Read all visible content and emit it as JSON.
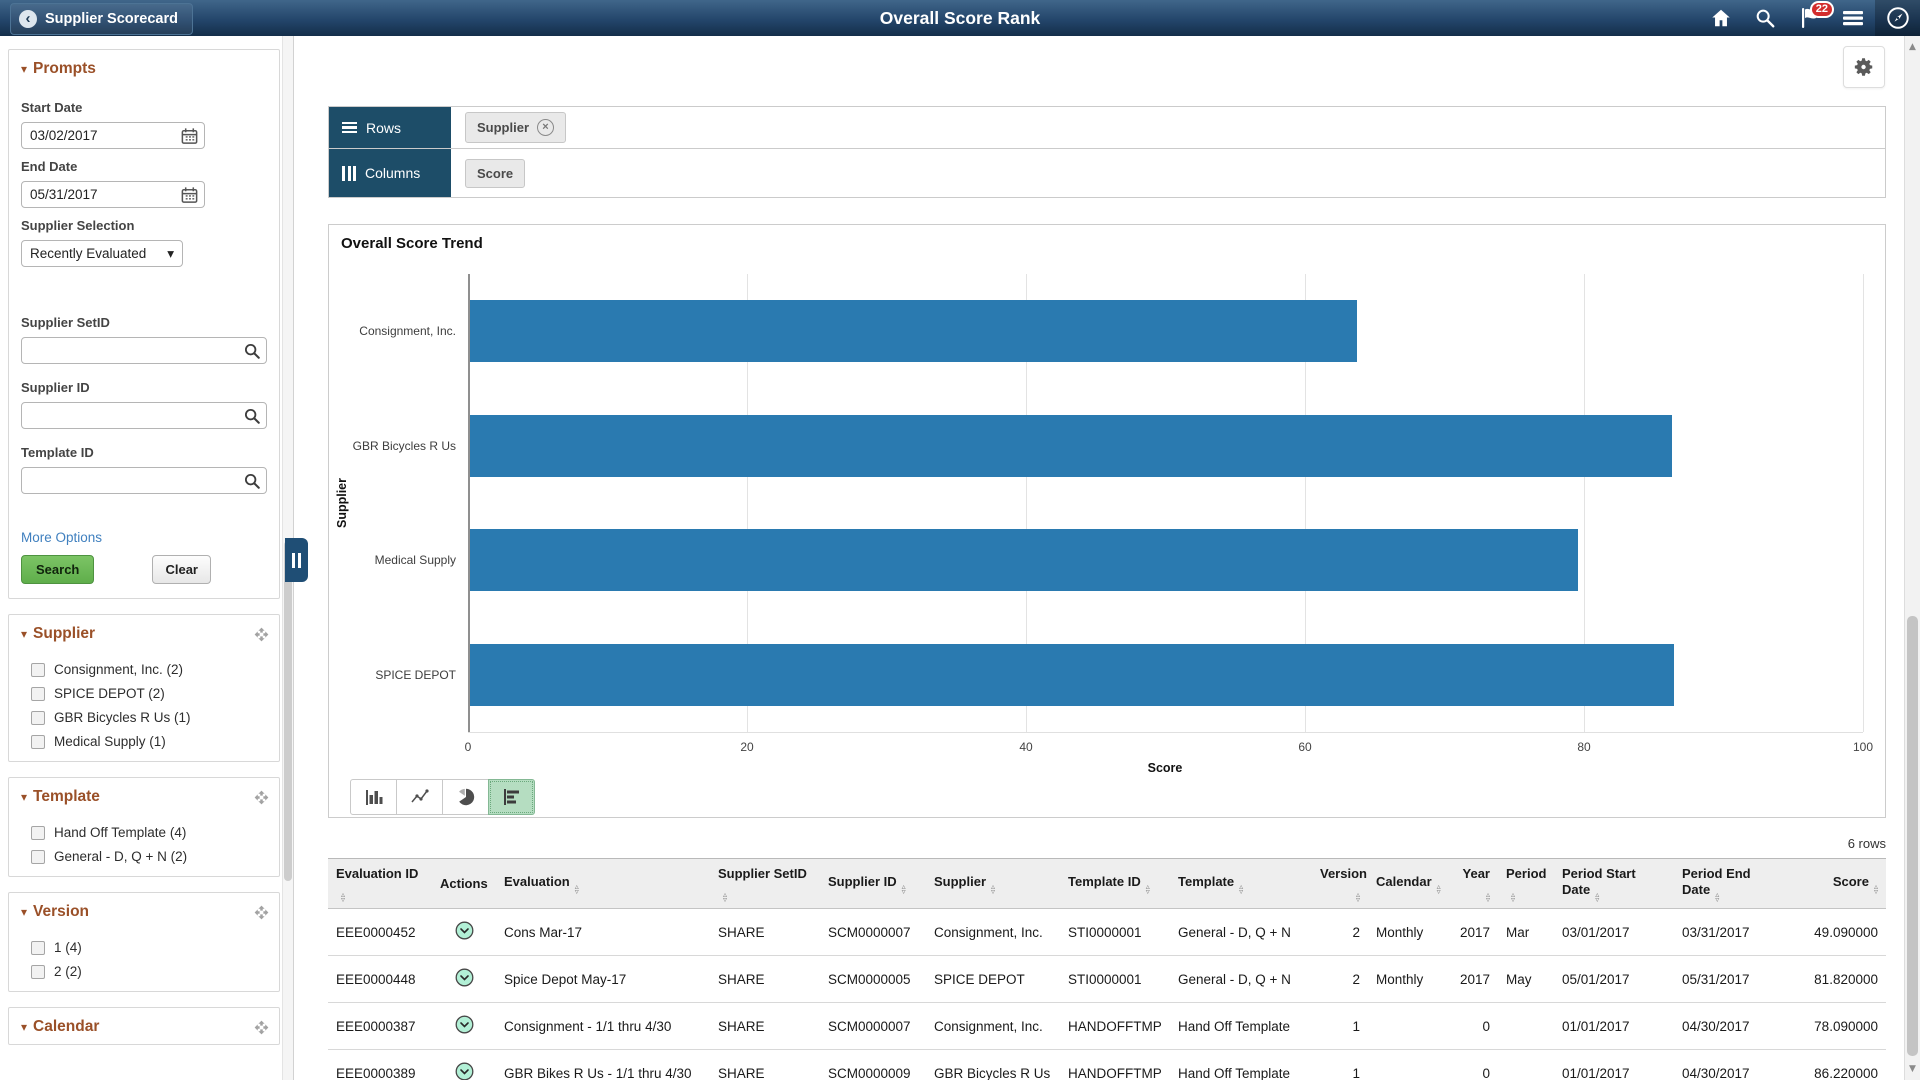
{
  "header": {
    "back_label": "Supplier Scorecard",
    "title": "Overall Score Rank",
    "notification_count": "22",
    "icons": [
      "home-icon",
      "search-icon",
      "notification-flag-icon",
      "menu-icon",
      "navbar-compass-icon"
    ]
  },
  "sidebar": {
    "prompts": {
      "title": "Prompts",
      "fields": [
        {
          "label": "Start Date",
          "value": "03/02/2017",
          "type": "date"
        },
        {
          "label": "End Date",
          "value": "05/31/2017",
          "type": "date"
        },
        {
          "label": "Supplier Selection",
          "value": "Recently Evaluated",
          "type": "select"
        },
        {
          "label": "Supplier SetID",
          "value": "",
          "type": "search"
        },
        {
          "label": "Supplier ID",
          "value": "",
          "type": "search"
        },
        {
          "label": "Template ID",
          "value": "",
          "type": "search"
        }
      ],
      "more_options_label": "More Options",
      "search_label": "Search",
      "clear_label": "Clear"
    },
    "facets": [
      {
        "title": "Supplier",
        "items": [
          "Consignment, Inc. (2)",
          "SPICE DEPOT (2)",
          "GBR Bicycles R Us (1)",
          "Medical Supply (1)"
        ]
      },
      {
        "title": "Template",
        "items": [
          "Hand Off Template (4)",
          "General - D, Q + N (2)"
        ]
      },
      {
        "title": "Version",
        "items": [
          "1 (4)",
          "2 (2)"
        ]
      },
      {
        "title": "Calendar",
        "items": []
      }
    ]
  },
  "pivot": {
    "rows_label": "Rows",
    "rows_chips": [
      {
        "label": "Supplier",
        "closable": true
      }
    ],
    "columns_label": "Columns",
    "columns_chips": [
      {
        "label": "Score",
        "closable": false
      }
    ]
  },
  "chart_data": {
    "type": "bar",
    "orientation": "horizontal",
    "title": "Overall Score Trend",
    "categories": [
      "Consignment, Inc.",
      "GBR Bicycles R Us",
      "Medical Supply",
      "SPICE DEPOT"
    ],
    "values": [
      63.6,
      86.2,
      79.4,
      86.3
    ],
    "xlabel": "Score",
    "ylabel": "Supplier",
    "xlim": [
      0,
      100
    ],
    "ticks": [
      0,
      20,
      40,
      60,
      80,
      100
    ],
    "bar_color": "#2a7ab0",
    "grid": true,
    "legend": false
  },
  "table": {
    "row_count_label": "6 rows",
    "columns": [
      {
        "label": "Evaluation ID",
        "sortable": true,
        "align": "left"
      },
      {
        "label": "Actions",
        "sortable": false,
        "align": "left"
      },
      {
        "label": "Evaluation",
        "sortable": true,
        "align": "left"
      },
      {
        "label": "Supplier SetID",
        "sortable": true,
        "align": "left"
      },
      {
        "label": "Supplier ID",
        "sortable": true,
        "align": "left"
      },
      {
        "label": "Supplier",
        "sortable": true,
        "align": "left"
      },
      {
        "label": "Template ID",
        "sortable": true,
        "align": "left"
      },
      {
        "label": "Template",
        "sortable": true,
        "align": "left"
      },
      {
        "label": "Version",
        "sortable": true,
        "align": "right"
      },
      {
        "label": "Calendar",
        "sortable": true,
        "align": "left"
      },
      {
        "label": "Year",
        "sortable": true,
        "align": "right"
      },
      {
        "label": "Period",
        "sortable": true,
        "align": "left"
      },
      {
        "label": "Period Start Date",
        "sortable": true,
        "align": "left"
      },
      {
        "label": "Period End Date",
        "sortable": true,
        "align": "left"
      },
      {
        "label": "Score",
        "sortable": true,
        "align": "right"
      }
    ],
    "rows": [
      [
        "EEE0000452",
        "",
        "Cons Mar-17",
        "SHARE",
        "SCM0000007",
        "Consignment, Inc.",
        "STI0000001",
        "General - D, Q + N",
        "2",
        "Monthly",
        "2017",
        "Mar",
        "03/01/2017",
        "03/31/2017",
        "49.090000"
      ],
      [
        "EEE0000448",
        "",
        "Spice Depot May-17",
        "SHARE",
        "SCM0000005",
        "SPICE DEPOT",
        "STI0000001",
        "General - D, Q + N",
        "2",
        "Monthly",
        "2017",
        "May",
        "05/01/2017",
        "05/31/2017",
        "81.820000"
      ],
      [
        "EEE0000387",
        "",
        "Consignment - 1/1 thru 4/30",
        "SHARE",
        "SCM0000007",
        "Consignment, Inc.",
        "HANDOFFTMP",
        "Hand Off Template",
        "1",
        "",
        "0",
        "",
        "01/01/2017",
        "04/30/2017",
        "78.090000"
      ],
      [
        "EEE0000389",
        "",
        "GBR Bikes R Us - 1/1 thru 4/30",
        "SHARE",
        "SCM0000009",
        "GBR Bicycles R Us",
        "HANDOFFTMP",
        "Hand Off Template",
        "1",
        "",
        "0",
        "",
        "01/01/2017",
        "04/30/2017",
        "86.220000"
      ]
    ]
  },
  "colors": {
    "header_navy": "#1d4d68",
    "facet_title_brown": "#9a5028",
    "button_green": "#6cb85a",
    "bar_blue": "#2a7ab0",
    "badge_red": "#d22d2d",
    "link_blue": "#4080bf"
  }
}
